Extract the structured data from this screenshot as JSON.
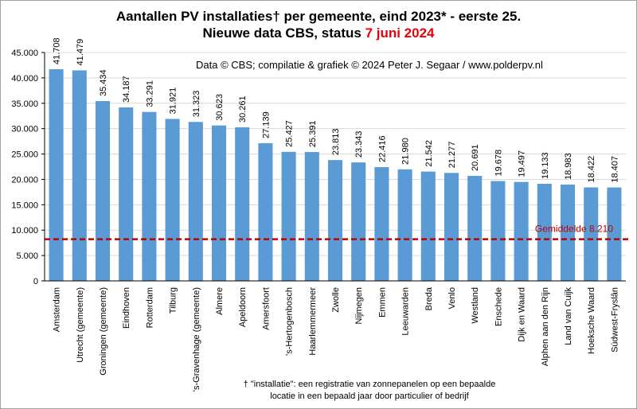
{
  "title_line1": "Aantallen  PV installaties†  per gemeente, eind 2023* - eerste 25.",
  "title_line2_prefix": "Nieuwe data CBS, status ",
  "title_line2_accent": "7 juni  2024",
  "credit": "Data © CBS;  compilatie &  grafiek © 2024 Peter J. Segaar / www.polderpv.nl",
  "footnote_line1": "† \"installatie\": een registratie van zonnepanelen op een bepaalde",
  "footnote_line2": "locatie in een bepaald jaar door particulier of bedrijf",
  "colors": {
    "bar": "#5b9bd5",
    "average_line": "#c00000",
    "grid": "#d9d9d9",
    "title_accent": "#e8000b"
  },
  "chart_data": {
    "type": "bar",
    "title": "Aantallen  PV installaties†  per gemeente, eind 2023* - eerste 25.",
    "xlabel": "",
    "ylabel": "",
    "ylim": [
      0,
      45000
    ],
    "yticks": [
      0,
      5000,
      10000,
      15000,
      20000,
      25000,
      30000,
      35000,
      40000,
      45000
    ],
    "ytick_labels": [
      "0",
      "5.000",
      "10.000",
      "15.000",
      "20.000",
      "25.000",
      "30.000",
      "35.000",
      "40.000",
      "45.000"
    ],
    "grid": true,
    "categories": [
      "Amsterdam",
      "Utrecht (gemeente)",
      "Groningen (gemeente)",
      "Eindhoven",
      "Rotterdam",
      "Tilburg",
      "'s-Gravenhage (gemeente)",
      "Almere",
      "Apeldoorn",
      "Amersfoort",
      "'s-Hertogenbosch",
      "Haarlemmermeer",
      "Zwolle",
      "Nijmegen",
      "Emmen",
      "Leeuwarden",
      "Breda",
      "Venlo",
      "Westland",
      "Enschede",
      "Dijk en Waard",
      "Alphen aan den Rijn",
      "Land van Cuijk",
      "Hoeksche Waard",
      "Súdwest-Fryslân"
    ],
    "values": [
      41708,
      41479,
      35434,
      34187,
      33291,
      31921,
      31323,
      30623,
      30261,
      27139,
      25427,
      25391,
      23813,
      23343,
      22416,
      21980,
      21542,
      21277,
      20691,
      19678,
      19497,
      19133,
      18983,
      18422,
      18407
    ],
    "value_labels": [
      "41.708",
      "41.479",
      "35.434",
      "34.187",
      "33.291",
      "31.921",
      "31.323",
      "30.623",
      "30.261",
      "27.139",
      "25.427",
      "25.391",
      "23.813",
      "23.343",
      "22.416",
      "21.980",
      "21.542",
      "21.277",
      "20.691",
      "19.678",
      "19.497",
      "19.133",
      "18.983",
      "18.422",
      "18.407"
    ],
    "average": 8210,
    "average_label": "Gemiddelde  8.210"
  }
}
